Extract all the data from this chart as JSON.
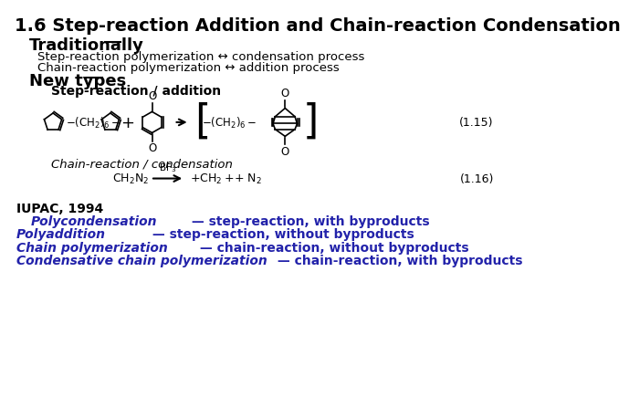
{
  "title": "1.6 Step-reaction Addition and Chain-reaction Condensation",
  "bg_color": "#ffffff",
  "traditionally_label": "Traditionally",
  "trad_line1": "Step-reaction polymerization ↔ condensation process",
  "trad_line2": "Chain-reaction polymerization ↔ addition process",
  "new_types_label": "New types",
  "step_reaction_label": "Step-reaction / addition",
  "chain_reaction_label": "Chain-reaction / condensation",
  "eq115": "(1.15)",
  "eq116": "(1.16)",
  "iupac_header": "IUPAC, 1994",
  "iupac_lines": [
    {
      "italic_part": "Polycondensation",
      "rest": " — step-reaction, with byproducts",
      "indent": true
    },
    {
      "italic_part": "Polyaddition",
      "rest": " — step-reaction, without byproducts",
      "indent": false
    },
    {
      "italic_part": "Chain polymerization",
      "rest": " — chain-reaction, without byproducts",
      "indent": false
    },
    {
      "italic_part": "Condensative chain polymerization",
      "rest": " — chain-reaction, with byproducts",
      "indent": false
    }
  ],
  "iupac_color": "#2222aa",
  "text_color": "#000000",
  "title_fontsize": 14,
  "body_fontsize": 9.5,
  "header_fontsize": 13
}
